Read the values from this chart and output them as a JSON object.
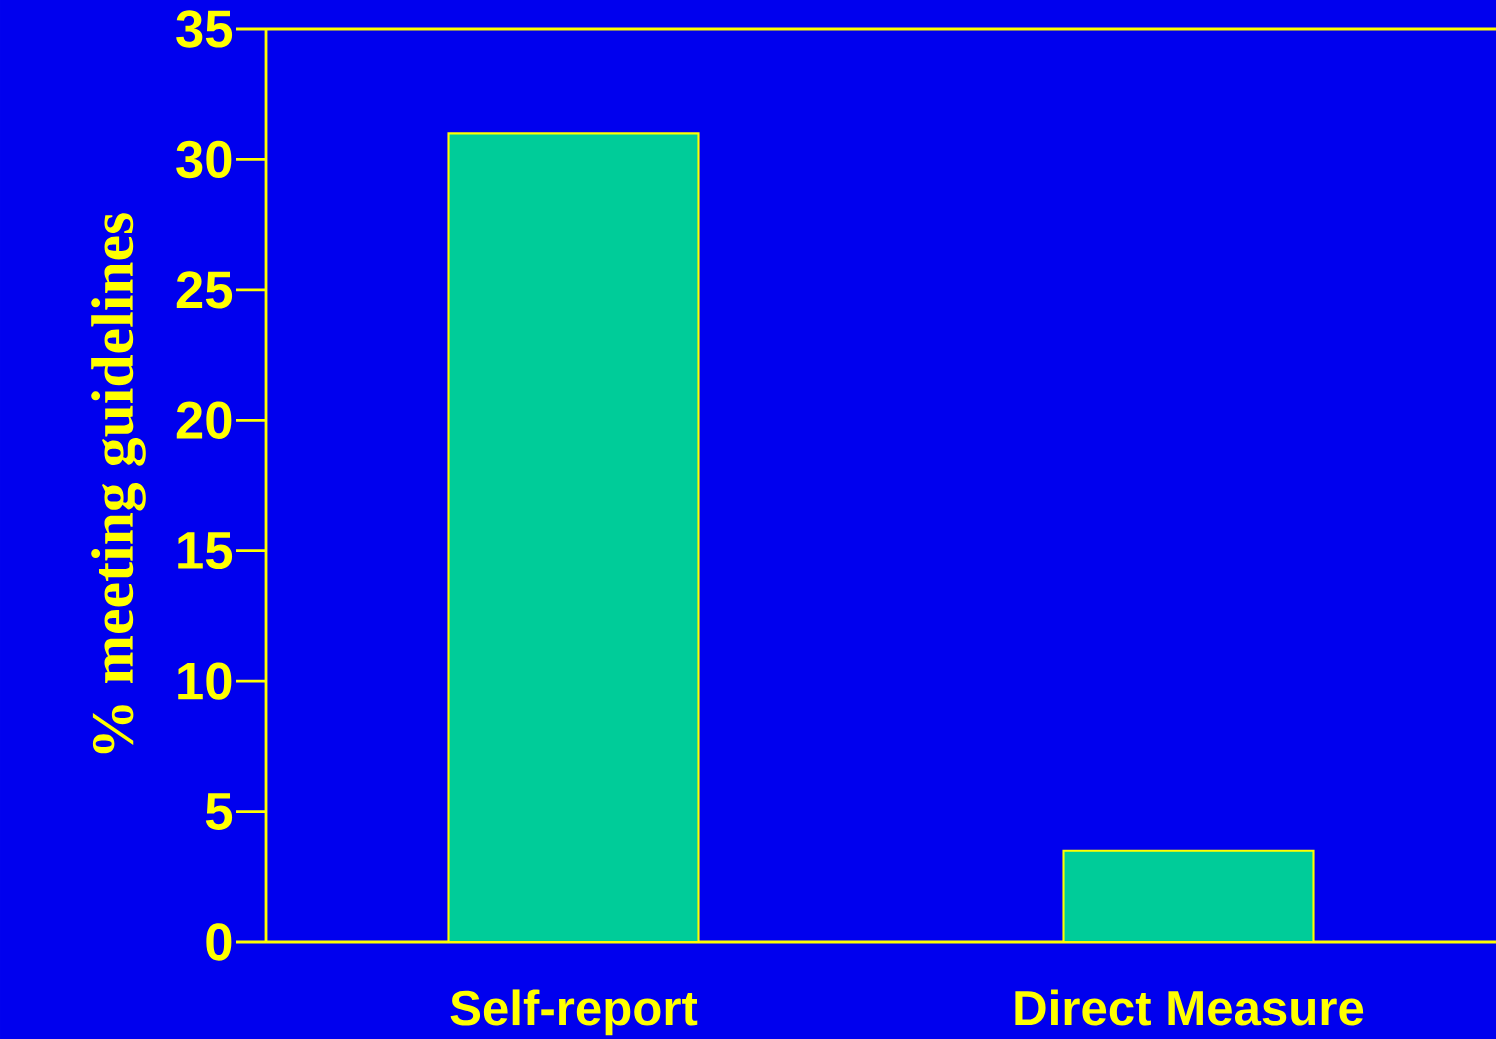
{
  "chart_data": {
    "type": "bar",
    "ylabel": "% meeting guidelines",
    "categories": [
      "Self-report",
      "Direct Measure"
    ],
    "values": [
      31,
      3.5
    ],
    "color": "#00cc99",
    "ylim": [
      0,
      35
    ],
    "yticks": [
      0,
      5,
      10,
      15,
      20,
      25,
      30,
      35
    ],
    "grid": false
  }
}
